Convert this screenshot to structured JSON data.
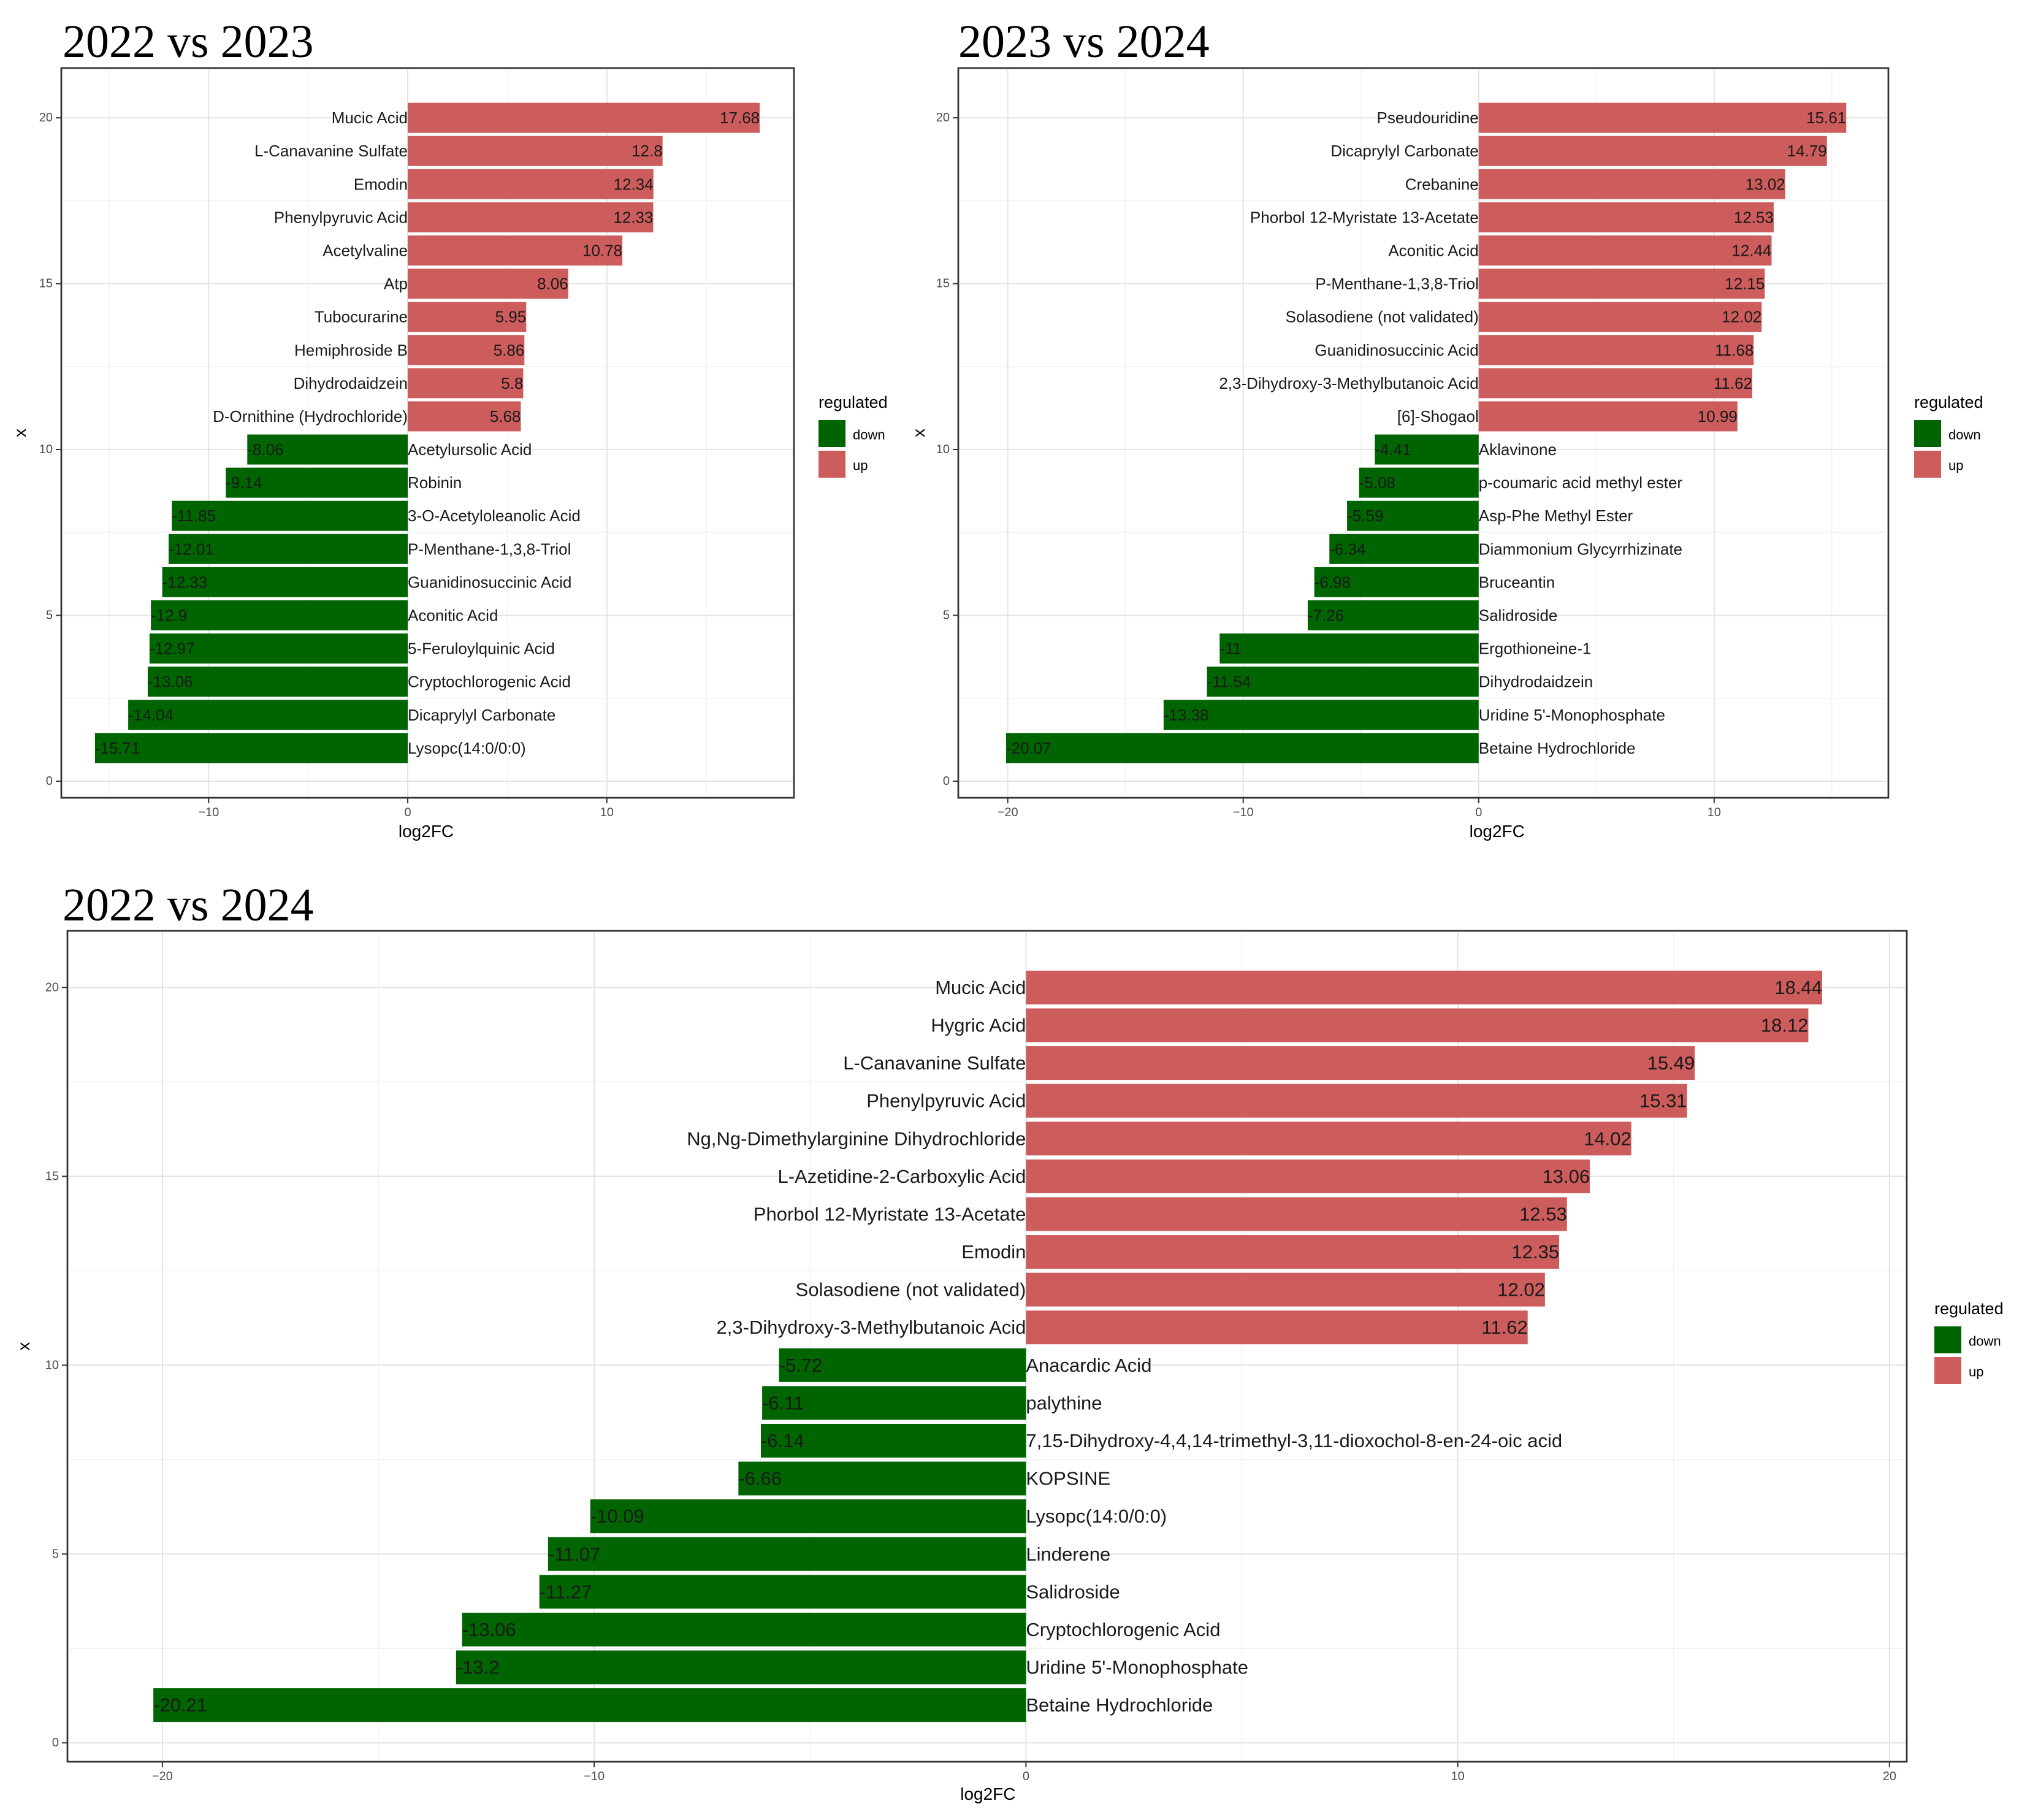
{
  "colors": {
    "up": "#cd5c5c",
    "down": "#006400"
  },
  "chart_data": [
    {
      "type": "bar",
      "orientation": "horizontal",
      "title": "2022 vs 2023",
      "xlabel": "log2FC",
      "ylabel": "x",
      "xlim": [
        -17.4,
        19.4
      ],
      "ylim": [
        -0.5,
        21.5
      ],
      "xticks": [
        -10,
        0,
        10
      ],
      "yticks": [
        0,
        5,
        10,
        15,
        20
      ],
      "legend": {
        "title": "regulated",
        "entries": [
          "down",
          "up"
        ],
        "position": "right"
      },
      "bars": [
        {
          "name": "Mucic Acid",
          "value": 17.68,
          "label": "17.68",
          "y": 20,
          "regulated": "up"
        },
        {
          "name": "L-Canavanine Sulfate",
          "value": 12.8,
          "label": "12.8",
          "y": 19,
          "regulated": "up"
        },
        {
          "name": "Emodin",
          "value": 12.34,
          "label": "12.34",
          "y": 18,
          "regulated": "up"
        },
        {
          "name": "Phenylpyruvic Acid",
          "value": 12.33,
          "label": "12.33",
          "y": 17,
          "regulated": "up"
        },
        {
          "name": "Acetylvaline",
          "value": 10.78,
          "label": "10.78",
          "y": 16,
          "regulated": "up"
        },
        {
          "name": "Atp",
          "value": 8.06,
          "label": "8.06",
          "y": 15,
          "regulated": "up"
        },
        {
          "name": "Tubocurarine",
          "value": 5.95,
          "label": "5.95",
          "y": 14,
          "regulated": "up"
        },
        {
          "name": "Hemiphroside B",
          "value": 5.86,
          "label": "5.86",
          "y": 13,
          "regulated": "up"
        },
        {
          "name": "Dihydrodaidzein",
          "value": 5.8,
          "label": "5.8",
          "y": 12,
          "regulated": "up"
        },
        {
          "name": "D-Ornithine (Hydrochloride)",
          "value": 5.68,
          "label": "5.68",
          "y": 11,
          "regulated": "up"
        },
        {
          "name": "Acetylursolic Acid",
          "value": -8.06,
          "label": "-8.06",
          "y": 10,
          "regulated": "down"
        },
        {
          "name": "Robinin",
          "value": -9.14,
          "label": "-9.14",
          "y": 9,
          "regulated": "down"
        },
        {
          "name": "3-O-Acetyloleanolic Acid",
          "value": -11.85,
          "label": "-11.85",
          "y": 8,
          "regulated": "down"
        },
        {
          "name": "P-Menthane-1,3,8-Triol",
          "value": -12.01,
          "label": "-12.01",
          "y": 7,
          "regulated": "down"
        },
        {
          "name": "Guanidinosuccinic Acid",
          "value": -12.33,
          "label": "-12.33",
          "y": 6,
          "regulated": "down"
        },
        {
          "name": "Aconitic Acid",
          "value": -12.9,
          "label": "-12.9",
          "y": 5,
          "regulated": "down"
        },
        {
          "name": "5-Feruloylquinic Acid",
          "value": -12.97,
          "label": "-12.97",
          "y": 4,
          "regulated": "down"
        },
        {
          "name": "Cryptochlorogenic Acid",
          "value": -13.06,
          "label": "-13.06",
          "y": 3,
          "regulated": "down"
        },
        {
          "name": "Dicaprylyl Carbonate",
          "value": -14.04,
          "label": "-14.04",
          "y": 2,
          "regulated": "down"
        },
        {
          "name": "Lysopc(14:0/0:0)",
          "value": -15.71,
          "label": "-15.71",
          "y": 1,
          "regulated": "down"
        }
      ]
    },
    {
      "type": "bar",
      "orientation": "horizontal",
      "title": "2023 vs 2024",
      "xlabel": "log2FC",
      "ylabel": "x",
      "xlim": [
        -22.1,
        17.4
      ],
      "ylim": [
        -0.5,
        21.5
      ],
      "xticks": [
        -20,
        -10,
        0,
        10
      ],
      "yticks": [
        0,
        5,
        10,
        15,
        20
      ],
      "legend": {
        "title": "regulated",
        "entries": [
          "down",
          "up"
        ],
        "position": "right"
      },
      "bars": [
        {
          "name": "Pseudouridine",
          "value": 15.61,
          "label": "15.61",
          "y": 20,
          "regulated": "up"
        },
        {
          "name": "Dicaprylyl Carbonate",
          "value": 14.79,
          "label": "14.79",
          "y": 19,
          "regulated": "up"
        },
        {
          "name": "Crebanine",
          "value": 13.02,
          "label": "13.02",
          "y": 18,
          "regulated": "up"
        },
        {
          "name": "Phorbol 12-Myristate 13-Acetate",
          "value": 12.53,
          "label": "12.53",
          "y": 17,
          "regulated": "up"
        },
        {
          "name": "Aconitic Acid",
          "value": 12.44,
          "label": "12.44",
          "y": 16,
          "regulated": "up"
        },
        {
          "name": "P-Menthane-1,3,8-Triol",
          "value": 12.15,
          "label": "12.15",
          "y": 15,
          "regulated": "up"
        },
        {
          "name": "Solasodiene (not validated)",
          "value": 12.02,
          "label": "12.02",
          "y": 14,
          "regulated": "up"
        },
        {
          "name": "Guanidinosuccinic Acid",
          "value": 11.68,
          "label": "11.68",
          "y": 13,
          "regulated": "up"
        },
        {
          "name": "2,3-Dihydroxy-3-Methylbutanoic Acid",
          "value": 11.62,
          "label": "11.62",
          "y": 12,
          "regulated": "up"
        },
        {
          "name": "[6]-Shogaol",
          "value": 10.99,
          "label": "10.99",
          "y": 11,
          "regulated": "up"
        },
        {
          "name": "Aklavinone",
          "value": -4.41,
          "label": "-4.41",
          "y": 10,
          "regulated": "down"
        },
        {
          "name": "p-coumaric acid methyl ester",
          "value": -5.08,
          "label": "-5.08",
          "y": 9,
          "regulated": "down"
        },
        {
          "name": "Asp-Phe Methyl Ester",
          "value": -5.59,
          "label": "-5.59",
          "y": 8,
          "regulated": "down"
        },
        {
          "name": "Diammonium Glycyrrhizinate",
          "value": -6.34,
          "label": "-6.34",
          "y": 7,
          "regulated": "down"
        },
        {
          "name": "Bruceantin",
          "value": -6.98,
          "label": "-6.98",
          "y": 6,
          "regulated": "down"
        },
        {
          "name": "Salidroside",
          "value": -7.26,
          "label": "-7.26",
          "y": 5,
          "regulated": "down"
        },
        {
          "name": "Ergothioneine-1",
          "value": -11,
          "label": "-11",
          "y": 4,
          "regulated": "down"
        },
        {
          "name": "Dihydrodaidzein",
          "value": -11.54,
          "label": "-11.54",
          "y": 3,
          "regulated": "down"
        },
        {
          "name": "Uridine 5'-Monophosphate",
          "value": -13.38,
          "label": "-13.38",
          "y": 2,
          "regulated": "down"
        },
        {
          "name": "Betaine Hydrochloride",
          "value": -20.07,
          "label": "-20.07",
          "y": 1,
          "regulated": "down"
        }
      ]
    },
    {
      "type": "bar",
      "orientation": "horizontal",
      "title": "2022 vs 2024",
      "xlabel": "log2FC",
      "ylabel": "x",
      "xlim": [
        -22.2,
        20.4
      ],
      "ylim": [
        -0.5,
        21.5
      ],
      "xticks": [
        -20,
        -10,
        0,
        10,
        20
      ],
      "yticks": [
        0,
        5,
        10,
        15,
        20
      ],
      "legend": {
        "title": "regulated",
        "entries": [
          "down",
          "up"
        ],
        "position": "right"
      },
      "bars": [
        {
          "name": "Mucic Acid",
          "value": 18.44,
          "label": "18.44",
          "y": 20,
          "regulated": "up"
        },
        {
          "name": "Hygric Acid",
          "value": 18.12,
          "label": "18.12",
          "y": 19,
          "regulated": "up"
        },
        {
          "name": "L-Canavanine Sulfate",
          "value": 15.49,
          "label": "15.49",
          "y": 18,
          "regulated": "up"
        },
        {
          "name": "Phenylpyruvic Acid",
          "value": 15.31,
          "label": "15.31",
          "y": 17,
          "regulated": "up"
        },
        {
          "name": "Ng,Ng-Dimethylarginine Dihydrochloride",
          "value": 14.02,
          "label": "14.02",
          "y": 16,
          "regulated": "up"
        },
        {
          "name": "L-Azetidine-2-Carboxylic Acid",
          "value": 13.06,
          "label": "13.06",
          "y": 15,
          "regulated": "up"
        },
        {
          "name": "Phorbol 12-Myristate 13-Acetate",
          "value": 12.53,
          "label": "12.53",
          "y": 14,
          "regulated": "up"
        },
        {
          "name": "Emodin",
          "value": 12.35,
          "label": "12.35",
          "y": 13,
          "regulated": "up"
        },
        {
          "name": "Solasodiene (not validated)",
          "value": 12.02,
          "label": "12.02",
          "y": 12,
          "regulated": "up"
        },
        {
          "name": "2,3-Dihydroxy-3-Methylbutanoic Acid",
          "value": 11.62,
          "label": "11.62",
          "y": 11,
          "regulated": "up"
        },
        {
          "name": "Anacardic Acid",
          "value": -5.72,
          "label": "-5.72",
          "y": 10,
          "regulated": "down"
        },
        {
          "name": "palythine",
          "value": -6.11,
          "label": "-6.11",
          "y": 9,
          "regulated": "down"
        },
        {
          "name": "7,15-Dihydroxy-4,4,14-trimethyl-3,11-dioxochol-8-en-24-oic acid",
          "value": -6.14,
          "label": "-6.14",
          "y": 8,
          "regulated": "down"
        },
        {
          "name": "KOPSINE",
          "value": -6.66,
          "label": "-6.66",
          "y": 7,
          "regulated": "down"
        },
        {
          "name": "Lysopc(14:0/0:0)",
          "value": -10.09,
          "label": "-10.09",
          "y": 6,
          "regulated": "down"
        },
        {
          "name": "Linderene",
          "value": -11.07,
          "label": "-11.07",
          "y": 5,
          "regulated": "down"
        },
        {
          "name": "Salidroside",
          "value": -11.27,
          "label": "-11.27",
          "y": 4,
          "regulated": "down"
        },
        {
          "name": "Cryptochlorogenic Acid",
          "value": -13.06,
          "label": "-13.06",
          "y": 3,
          "regulated": "down"
        },
        {
          "name": "Uridine 5'-Monophosphate",
          "value": -13.2,
          "label": "-13.2",
          "y": 2,
          "regulated": "down"
        },
        {
          "name": "Betaine Hydrochloride",
          "value": -20.21,
          "label": "-20.21",
          "y": 1,
          "regulated": "down"
        }
      ]
    }
  ]
}
